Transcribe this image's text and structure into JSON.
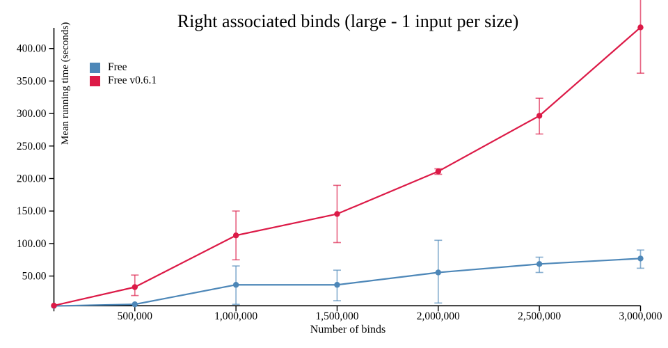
{
  "chart_data": {
    "type": "line",
    "title": "Right associated binds (large - 1 input per size)",
    "xlabel": "Number of binds",
    "ylabel": "Mean running time (seconds)",
    "x": [
      100000,
      500000,
      1000000,
      1500000,
      2000000,
      2500000,
      3000000
    ],
    "xlim": [
      100000,
      3000000
    ],
    "ylim": [
      4.3,
      431.8
    ],
    "grid": false,
    "legend_position": "top-left",
    "x_ticks": {
      "values": [
        100000,
        500000,
        1000000,
        1500000,
        2000000,
        2500000,
        3000000
      ],
      "labels": [
        "",
        "500,000",
        "1,000,000",
        "1,500,000",
        "2,000,000",
        "2,500,000",
        "3,000,000"
      ]
    },
    "y_ticks": {
      "values": [
        50,
        100,
        150,
        200,
        250,
        300,
        350,
        400
      ],
      "labels": [
        "50.00",
        "100.00",
        "150.00",
        "200.00",
        "250.00",
        "300.00",
        "350.00",
        "400.00"
      ]
    },
    "series": [
      {
        "name": "Free",
        "color": "#4d87b8",
        "values": [
          4.0,
          6.5,
          36.5,
          36.5,
          55.5,
          68.5,
          77
        ],
        "err_low": [
          null,
          null,
          6.5,
          12,
          8.5,
          55.5,
          62
        ],
        "err_high": [
          null,
          null,
          65.5,
          59,
          105,
          79,
          90
        ]
      },
      {
        "name": "Free v0.6.1",
        "color": "#dc1a47",
        "values": [
          4.5,
          33,
          112.5,
          145.5,
          211,
          296.5,
          432.5
        ],
        "err_low": [
          null,
          20,
          75,
          101.5,
          206.5,
          268.5,
          362
        ],
        "err_high": [
          null,
          51.5,
          150,
          189.5,
          215,
          323.5,
          503
        ]
      }
    ]
  },
  "colors": {
    "axis": "#000000",
    "text": "#000000",
    "background": "#ffffff"
  }
}
